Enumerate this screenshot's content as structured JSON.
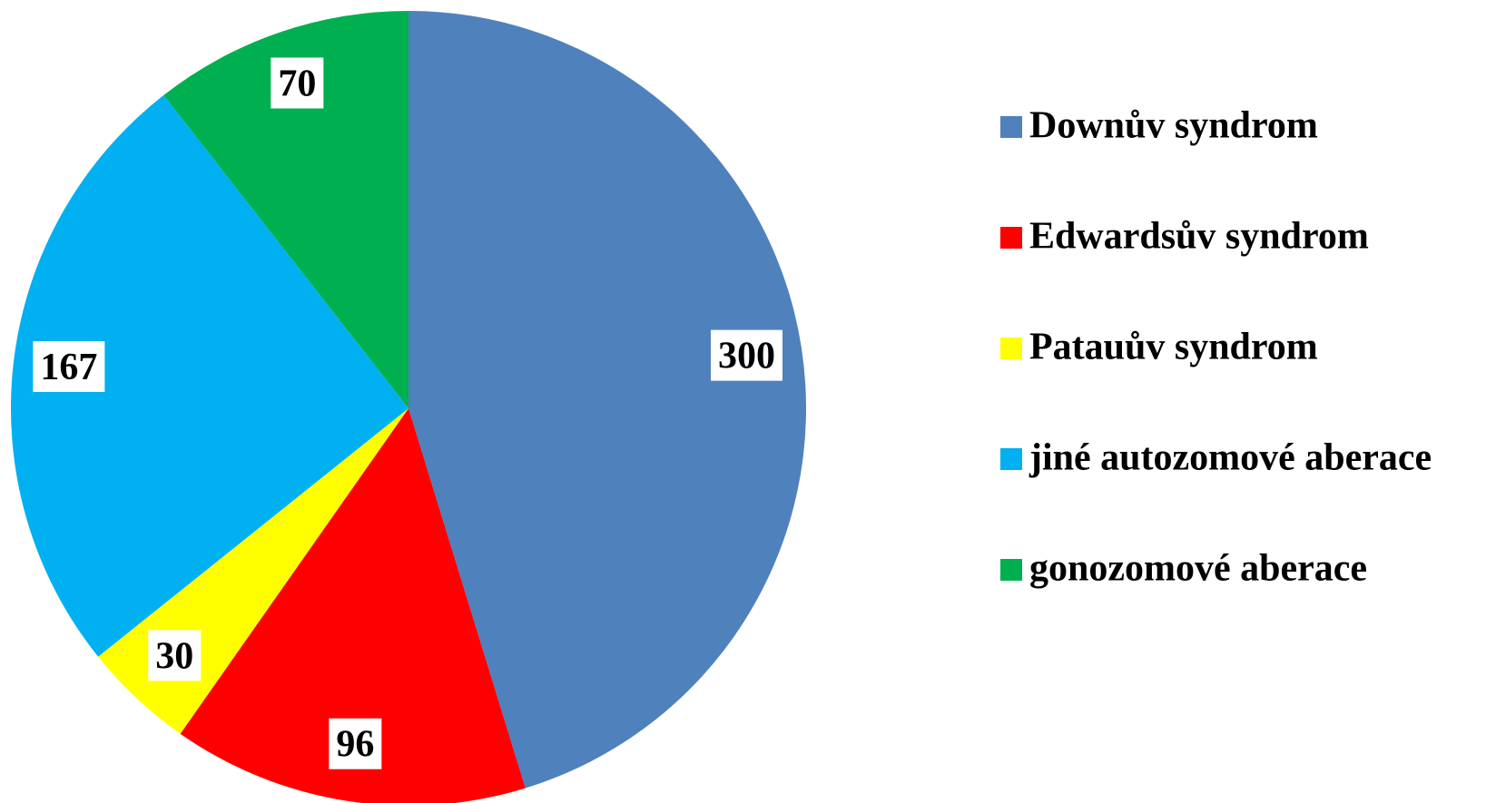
{
  "chart_data": {
    "type": "pie",
    "categories": [
      "Downův syndrom",
      "Edwardsův syndrom",
      "Patauův syndrom",
      "jiné autozomové aberace",
      "gonozomové aberace"
    ],
    "values": [
      300,
      96,
      30,
      167,
      70
    ],
    "colors": [
      "#4f81bd",
      "#ff0000",
      "#ffff00",
      "#00b0f0",
      "#00b050"
    ],
    "legend": "right"
  }
}
